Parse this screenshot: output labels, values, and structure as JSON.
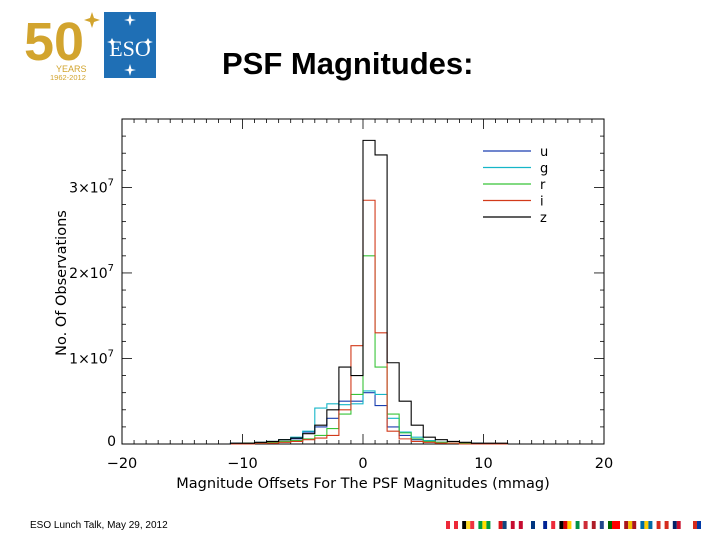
{
  "slide_title": "PSF Magnitudes:",
  "logo": {
    "number": "50",
    "years": "YEARS",
    "span": "1962-2012",
    "org": "ESO"
  },
  "footer": {
    "talk": "ESO Lunch Talk,  May 29, 2012"
  },
  "colors": {
    "logo_gold": "#d2a42e",
    "logo_blue": "#1f6fb5"
  },
  "chart_data": {
    "type": "histogram",
    "title": "",
    "xlabel": "Magnitude Offsets For The PSF Magnitudes (mmag)",
    "ylabel": "No. Of Observations",
    "xlim": [
      -20,
      20
    ],
    "ylim": [
      0,
      38000000.0
    ],
    "x_ticks": [
      -20,
      -10,
      0,
      10,
      20
    ],
    "x_tick_labels": [
      "−20",
      "−10",
      "0",
      "10",
      "20"
    ],
    "y_ticks": [
      0,
      10000000.0,
      20000000.0,
      30000000.0
    ],
    "y_tick_labels": [
      {
        "base": "0",
        "exp": ""
      },
      {
        "base": "1×10",
        "exp": "7"
      },
      {
        "base": "2×10",
        "exp": "7"
      },
      {
        "base": "3×10",
        "exp": "7"
      }
    ],
    "legend_position": "top-right",
    "bin_edges": [
      -20,
      -19,
      -18,
      -17,
      -16,
      -15,
      -14,
      -13,
      -12,
      -11,
      -10,
      -9,
      -8,
      -7,
      -6,
      -5,
      -4,
      -3,
      -2,
      -1,
      0,
      1,
      2,
      3,
      4,
      5,
      6,
      7,
      8,
      9,
      10,
      11,
      12
    ],
    "series": [
      {
        "name": "u",
        "color": "#1a3fb0",
        "values": [
          0,
          0,
          0,
          0,
          0,
          0,
          0,
          0,
          0,
          100000.0,
          100000.0,
          100000.0,
          200000.0,
          300000.0,
          600000.0,
          1400000.0,
          2000000.0,
          3000000.0,
          5000000.0,
          5000000.0,
          6000000.0,
          4500000.0,
          2000000.0,
          1000000.0,
          500000.0,
          400000.0,
          200000.0,
          100000.0,
          100000.0,
          100000.0,
          0,
          0
        ]
      },
      {
        "name": "g",
        "color": "#16b6c8",
        "values": [
          0,
          0,
          0,
          0,
          0,
          0,
          0,
          0,
          0,
          100000.0,
          100000.0,
          200000.0,
          300000.0,
          500000.0,
          800000.0,
          1500000.0,
          4200000.0,
          4700000.0,
          4600000.0,
          4700000.0,
          6200000.0,
          5800000.0,
          3000000.0,
          1400000.0,
          800000.0,
          400000.0,
          200000.0,
          100000.0,
          100000.0,
          100000.0,
          0,
          0
        ]
      },
      {
        "name": "r",
        "color": "#38c438",
        "values": [
          0,
          0,
          0,
          0,
          0,
          0,
          0,
          0,
          0,
          0,
          100000.0,
          100000.0,
          200000.0,
          300000.0,
          400000.0,
          600000.0,
          1000000.0,
          1800000.0,
          3500000.0,
          5800000.0,
          22000000.0,
          9000000.0,
          3500000.0,
          1300000.0,
          600000.0,
          300000.0,
          200000.0,
          100000.0,
          100000.0,
          0,
          0,
          0
        ]
      },
      {
        "name": "i",
        "color": "#d23a1a",
        "values": [
          0,
          0,
          0,
          0,
          0,
          0,
          0,
          0,
          0,
          0,
          0,
          100000.0,
          100000.0,
          200000.0,
          300000.0,
          500000.0,
          700000.0,
          1000000.0,
          4000000.0,
          11500000.0,
          28500000.0,
          13000000.0,
          1500000.0,
          600000.0,
          300000.0,
          200000.0,
          100000.0,
          100000.0,
          0,
          0,
          0,
          0
        ]
      },
      {
        "name": "z",
        "color": "#000000",
        "values": [
          0,
          0,
          0,
          0,
          0,
          0,
          0,
          0,
          0,
          100000.0,
          100000.0,
          200000.0,
          300000.0,
          500000.0,
          700000.0,
          1200000.0,
          2200000.0,
          4000000.0,
          9000000.0,
          8000000.0,
          35500000.0,
          33800000.0,
          9500000.0,
          5000000.0,
          2200000.0,
          800000.0,
          500000.0,
          300000.0,
          200000.0,
          100000.0,
          100000.0,
          100000.0
        ]
      }
    ]
  }
}
